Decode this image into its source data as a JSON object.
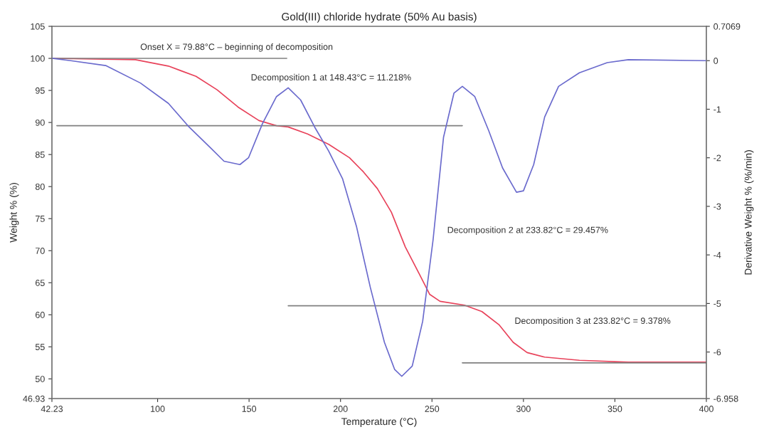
{
  "chart_data": {
    "type": "line",
    "title": "Gold(III) chloride hydrate (50% Au basis)",
    "xlabel": "Temperature (°C)",
    "ylabel": "Weight % (%)",
    "y2label": "Derivative Weight % (%/min)",
    "xlim": [
      42.23,
      400
    ],
    "xticks": [
      42.23,
      100,
      150,
      200,
      250,
      300,
      350,
      400
    ],
    "ylim": [
      46.93,
      105
    ],
    "yticks": [
      46.93,
      50,
      55,
      60,
      65,
      70,
      75,
      80,
      85,
      90,
      95,
      100,
      105
    ],
    "y2lim": [
      -6.958,
      0.7069
    ],
    "y2ticks": [
      -6.958,
      -6,
      -5,
      -4,
      -3,
      -2,
      -1,
      0,
      0.7069
    ],
    "grid": false,
    "legend": false,
    "marker": "none",
    "series": [
      {
        "color": "#e8425a",
        "x": [
          42.23,
          87.9,
          105.9,
          121,
          132.5,
          144,
          155.4,
          165,
          171.4,
          182,
          193.5,
          204.9,
          212.5,
          220.1,
          227.8,
          235.4,
          243,
          248.7,
          254.4,
          267.7,
          277.3,
          286.8,
          294.4,
          302,
          311.6,
          330.6,
          357.3,
          400
        ],
        "values": [
          100,
          99.8,
          98.8,
          97.2,
          95.1,
          92.4,
          90.3,
          89.5,
          89.3,
          88.2,
          86.6,
          84.5,
          82.3,
          79.7,
          76.0,
          70.6,
          66.4,
          63.2,
          62.1,
          61.5,
          60.5,
          58.4,
          55.7,
          54.1,
          53.4,
          52.9,
          52.6,
          52.6
        ]
      },
      {
        "color": "#6a6acd",
        "axis": "y2",
        "x": [
          42.23,
          52.5,
          71.6,
          90.6,
          105.9,
          117.3,
          128.8,
          136.3,
          145,
          149.7,
          157.3,
          165,
          171.4,
          178.2,
          185.9,
          193.5,
          201.1,
          208.7,
          216.3,
          224,
          229.6,
          233.5,
          239.2,
          244.9,
          250.6,
          256.3,
          262,
          266.6,
          273.4,
          281,
          288.6,
          296.2,
          300,
          305.6,
          311.6,
          319.2,
          330.6,
          345.8,
          357.3,
          400
        ],
        "values": [
          0.05,
          0,
          -0.1,
          -0.46,
          -0.88,
          -1.37,
          -1.79,
          -2.07,
          -2.14,
          -2.0,
          -1.3,
          -0.74,
          -0.56,
          -0.81,
          -1.37,
          -1.86,
          -2.43,
          -3.41,
          -4.67,
          -5.8,
          -6.36,
          -6.5,
          -6.29,
          -5.37,
          -3.69,
          -1.58,
          -0.67,
          -0.53,
          -0.74,
          -1.44,
          -2.21,
          -2.71,
          -2.68,
          -2.14,
          -1.16,
          -0.53,
          -0.25,
          -0.04,
          0.02,
          0
        ]
      },
      {
        "color": "#808080",
        "x": [
          42.23,
          170.6
        ],
        "values": [
          100,
          100
        ]
      },
      {
        "color": "#808080",
        "x": [
          44.9,
          266.6
        ],
        "values": [
          89.5,
          89.5
        ]
      },
      {
        "color": "#808080",
        "x": [
          171.4,
          400
        ],
        "values": [
          61.4,
          61.4
        ]
      },
      {
        "color": "#808080",
        "x": [
          266.6,
          400
        ],
        "values": [
          52.5,
          52.5
        ]
      }
    ],
    "annotations": [
      "Onset X = 79.88°C – beginning of decomposition",
      "Decomposition 1 at 148.43°C = 11.218%",
      "Decomposition 2 at 233.82°C = 29.457%",
      "Decomposition 3 at 233.82°C = 9.378%"
    ]
  }
}
